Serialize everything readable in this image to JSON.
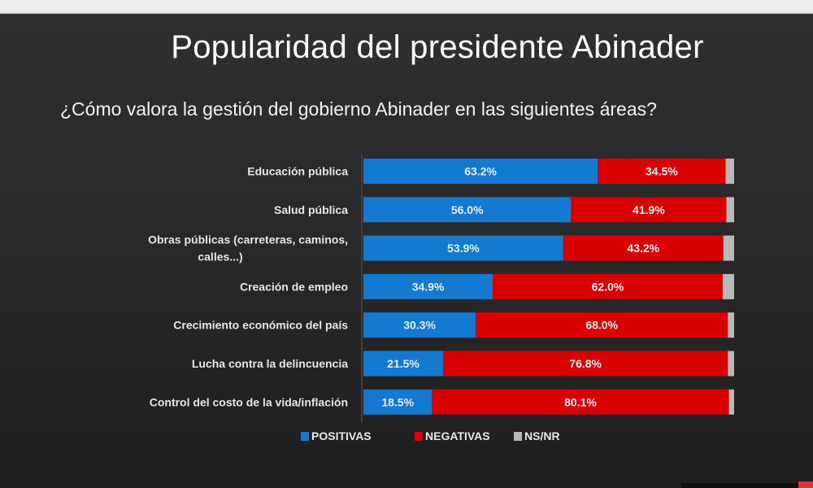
{
  "chart_data": {
    "type": "bar",
    "orientation": "horizontal",
    "stacked": true,
    "title": "Popularidad del presidente Abinader",
    "subtitle": "¿Cómo valora la gestión del gobierno Abinader en las siguientes áreas?",
    "xlabel": "",
    "ylabel": "",
    "xlim": [
      0,
      100
    ],
    "grid": false,
    "legend_position": "bottom",
    "categories": [
      [
        "Educación pública"
      ],
      [
        "Salud pública"
      ],
      [
        "Obras públicas (carreteras, caminos,",
        "calles...)"
      ],
      [
        "Creación de empleo"
      ],
      [
        "Crecimiento económico del país"
      ],
      [
        "Lucha contra la delincuencia"
      ],
      [
        "Control del costo de la vida/inflación"
      ]
    ],
    "series": [
      {
        "name": "POSITIVAS",
        "color": "#1479d1",
        "values": [
          63.2,
          56.0,
          53.9,
          34.9,
          30.3,
          21.5,
          18.5
        ],
        "labels": [
          "63.2%",
          "56.0%",
          "53.9%",
          "34.9%",
          "30.3%",
          "21.5%",
          "18.5%"
        ]
      },
      {
        "name": "NEGATIVAS",
        "color": "#d90000",
        "values": [
          34.5,
          41.9,
          43.2,
          62.0,
          68.0,
          76.8,
          80.1
        ],
        "labels": [
          "34.5%",
          "41.9%",
          "43.2%",
          "62.0%",
          "68.0%",
          "76.8%",
          "80.1%"
        ]
      },
      {
        "name": "NS/NR",
        "color": "#b9b9b9",
        "values": [
          2.3,
          2.1,
          2.9,
          3.1,
          1.7,
          1.7,
          1.4
        ],
        "labels": [
          "",
          "",
          "",
          "",
          "",
          "",
          ""
        ]
      }
    ]
  }
}
